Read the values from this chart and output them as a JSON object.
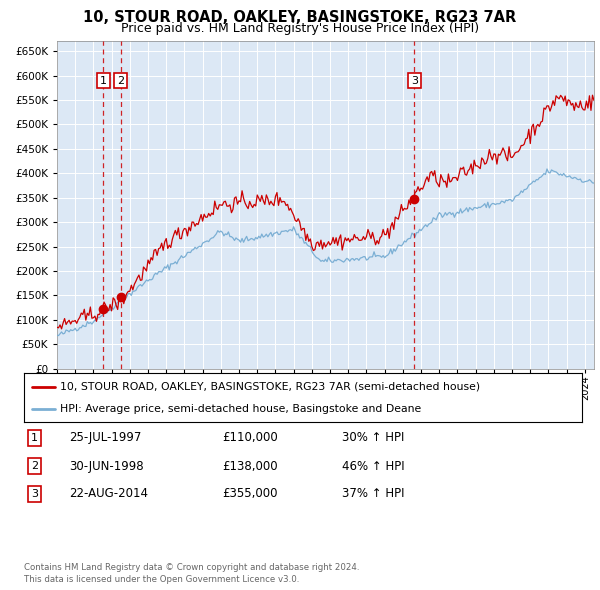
{
  "title": "10, STOUR ROAD, OAKLEY, BASINGSTOKE, RG23 7AR",
  "subtitle": "Price paid vs. HM Land Registry's House Price Index (HPI)",
  "bg_color": "#dce8f5",
  "red_line_color": "#cc0000",
  "blue_line_color": "#7bafd4",
  "transaction_line_color": "#cc0000",
  "ylim": [
    0,
    670000
  ],
  "yticks": [
    0,
    50000,
    100000,
    150000,
    200000,
    250000,
    300000,
    350000,
    400000,
    450000,
    500000,
    550000,
    600000,
    650000
  ],
  "xlim_start": 1995.0,
  "xlim_end": 2024.5,
  "legend_red": "10, STOUR ROAD, OAKLEY, BASINGSTOKE, RG23 7AR (semi-detached house)",
  "legend_blue": "HPI: Average price, semi-detached house, Basingstoke and Deane",
  "transactions": [
    {
      "num": 1,
      "date": "25-JUL-1997",
      "price": 110000,
      "pct": "30%",
      "dir": "↑",
      "x_year": 1997.55
    },
    {
      "num": 2,
      "date": "30-JUN-1998",
      "price": 138000,
      "pct": "46%",
      "dir": "↑",
      "x_year": 1998.49
    },
    {
      "num": 3,
      "date": "22-AUG-2014",
      "price": 355000,
      "pct": "37%",
      "dir": "↑",
      "x_year": 2014.63
    }
  ],
  "footer1": "Contains HM Land Registry data © Crown copyright and database right 2024.",
  "footer2": "This data is licensed under the Open Government Licence v3.0."
}
